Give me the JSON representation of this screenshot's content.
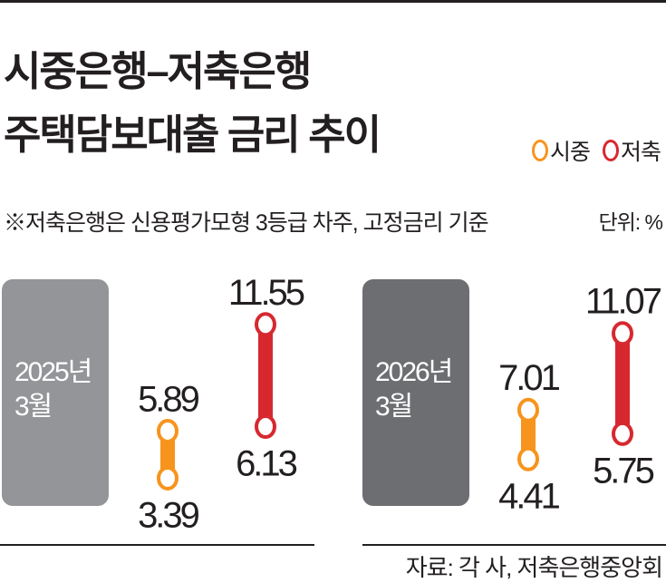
{
  "title_line1": "시중은행–저축은행",
  "title_line2": "주택담보대출 금리 추이",
  "legend": [
    {
      "label": "시중",
      "color": "#f7941d"
    },
    {
      "label": "저축",
      "color": "#d7282f"
    }
  ],
  "note": "※저축은행은 신용평가모형 3등급 차주, 고정금리 기준",
  "unit": "단위: %",
  "source": "자료: 각 사, 저축은행중앙회",
  "chart_data": {
    "type": "range",
    "unit": "%",
    "panels": [
      {
        "year": "2025년",
        "month": "3월",
        "box_color": "#939598",
        "series": [
          {
            "name": "시중",
            "high": 5.89,
            "low": 3.39,
            "high_label": "5.89",
            "low_label": "3.39"
          },
          {
            "name": "저축",
            "high": 11.55,
            "low": 6.13,
            "high_label": "11.55",
            "low_label": "6.13"
          }
        ]
      },
      {
        "year": "2026년",
        "month": "3월",
        "box_color": "#6d6e71",
        "series": [
          {
            "name": "시중",
            "high": 7.01,
            "low": 4.41,
            "high_label": "7.01",
            "low_label": "4.41"
          },
          {
            "name": "저축",
            "high": 11.07,
            "low": 5.75,
            "high_label": "11.07",
            "low_label": "5.75"
          }
        ]
      }
    ]
  }
}
